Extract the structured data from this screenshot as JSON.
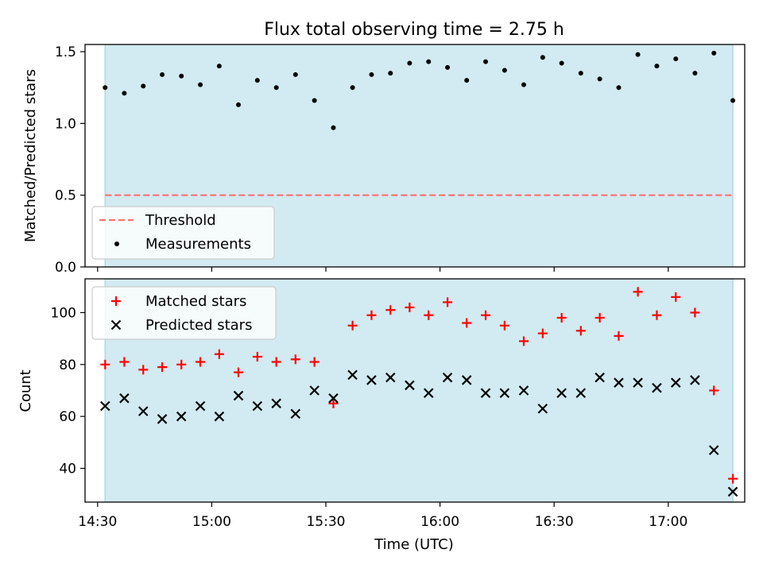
{
  "title": "Flux total observing time = 2.75 h",
  "xlabel": "Time (UTC)",
  "colors": {
    "band": "#add8e6",
    "threshold": "#ff7070",
    "measurement": "#000000",
    "matched": "#ff0000",
    "predicted": "#000000"
  },
  "chart_data": [
    {
      "type": "scatter",
      "ylabel": "Matched/Predicted stars",
      "ylim": [
        0,
        1.55
      ],
      "yticks": [
        0.0,
        0.5,
        1.0,
        1.5
      ],
      "ytick_labels": [
        "0.0",
        "0.5",
        "1.0",
        "1.5"
      ],
      "xlim": [
        14.445,
        17.335
      ],
      "shaded_band": [
        14.533,
        17.283
      ],
      "threshold": 0.5,
      "legend_position": "lower-left",
      "series": [
        {
          "name": "Threshold",
          "kind": "hline",
          "value": 0.5
        },
        {
          "name": "Measurements",
          "kind": "points",
          "x": [
            14.533,
            14.617,
            14.7,
            14.783,
            14.867,
            14.95,
            15.033,
            15.117,
            15.2,
            15.283,
            15.367,
            15.45,
            15.533,
            15.617,
            15.7,
            15.783,
            15.867,
            15.95,
            16.033,
            16.117,
            16.2,
            16.283,
            16.367,
            16.45,
            16.533,
            16.617,
            16.7,
            16.783,
            16.867,
            16.95,
            17.033,
            17.117,
            17.2,
            17.283
          ],
          "y": [
            1.25,
            1.21,
            1.26,
            1.34,
            1.33,
            1.27,
            1.4,
            1.13,
            1.3,
            1.25,
            1.34,
            1.16,
            0.97,
            1.25,
            1.34,
            1.35,
            1.42,
            1.43,
            1.39,
            1.3,
            1.43,
            1.37,
            1.27,
            1.46,
            1.42,
            1.35,
            1.31,
            1.25,
            1.48,
            1.4,
            1.45,
            1.35,
            1.49,
            1.16
          ]
        }
      ]
    },
    {
      "type": "scatter",
      "ylabel": "Count",
      "ylim": [
        27,
        113
      ],
      "yticks": [
        40,
        60,
        80,
        100
      ],
      "ytick_labels": [
        "40",
        "60",
        "80",
        "100"
      ],
      "xlim": [
        14.445,
        17.335
      ],
      "xticks": [
        14.5,
        15.0,
        15.5,
        16.0,
        16.5,
        17.0
      ],
      "xtick_labels": [
        "14:30",
        "15:00",
        "15:30",
        "16:00",
        "16:30",
        "17:00"
      ],
      "shaded_band": [
        14.533,
        17.283
      ],
      "legend_position": "upper-left",
      "series": [
        {
          "name": "Matched stars",
          "marker": "plus",
          "x": [
            14.533,
            14.617,
            14.7,
            14.783,
            14.867,
            14.95,
            15.033,
            15.117,
            15.2,
            15.283,
            15.367,
            15.45,
            15.533,
            15.617,
            15.7,
            15.783,
            15.867,
            15.95,
            16.033,
            16.117,
            16.2,
            16.283,
            16.367,
            16.45,
            16.533,
            16.617,
            16.7,
            16.783,
            16.867,
            16.95,
            17.033,
            17.117,
            17.2,
            17.283
          ],
          "y": [
            80,
            81,
            78,
            79,
            80,
            81,
            84,
            77,
            83,
            81,
            82,
            81,
            65,
            95,
            99,
            101,
            102,
            99,
            104,
            96,
            99,
            95,
            89,
            92,
            98,
            93,
            98,
            91,
            108,
            99,
            106,
            100,
            70,
            36
          ]
        },
        {
          "name": "Predicted stars",
          "marker": "x",
          "x": [
            14.533,
            14.617,
            14.7,
            14.783,
            14.867,
            14.95,
            15.033,
            15.117,
            15.2,
            15.283,
            15.367,
            15.45,
            15.533,
            15.617,
            15.7,
            15.783,
            15.867,
            15.95,
            16.033,
            16.117,
            16.2,
            16.283,
            16.367,
            16.45,
            16.533,
            16.617,
            16.7,
            16.783,
            16.867,
            16.95,
            17.033,
            17.117,
            17.2,
            17.283
          ],
          "y": [
            64,
            67,
            62,
            59,
            60,
            64,
            60,
            68,
            64,
            65,
            61,
            70,
            67,
            76,
            74,
            75,
            72,
            69,
            75,
            74,
            69,
            69,
            70,
            63,
            69,
            69,
            75,
            73,
            73,
            71,
            73,
            74,
            47,
            31
          ]
        }
      ]
    }
  ]
}
